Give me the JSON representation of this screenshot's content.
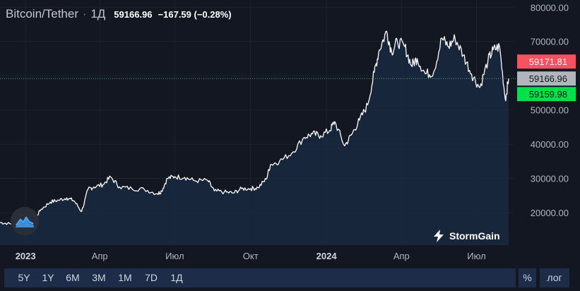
{
  "header": {
    "symbol": "Bitcoin/Tether",
    "separator": "·",
    "interval": "1Д",
    "last_price": "59166.96",
    "change": "−167.59 (−0.28%)"
  },
  "branding": {
    "name": "StormGain"
  },
  "toolbar": {
    "timeframes": [
      "5Y",
      "1Y",
      "6M",
      "3M",
      "1M",
      "7D",
      "1Д"
    ],
    "percent_label": "%",
    "log_label": "лог"
  },
  "colors": {
    "background": "#131722",
    "line": "#ffffff",
    "area": "#1a2940",
    "ask_tag": "#f7525f",
    "last_tag": "#b2b5be",
    "bid_tag": "#00e04a",
    "last_price_line": "#4caf75",
    "toolbar_bg": "#1d2c48"
  },
  "chart_data": {
    "type": "line",
    "title": "",
    "xlabel": "",
    "ylabel": "",
    "y_ticks": [
      "80000.00",
      "70000.00",
      "60000.00",
      "50000.00",
      "40000.00",
      "30000.00",
      "20000.00"
    ],
    "y_tick_values": [
      80000,
      70000,
      60000,
      50000,
      40000,
      30000,
      20000
    ],
    "ylim": [
      10500,
      81500
    ],
    "x_range": [
      "2022-12-01",
      "2024-08-09"
    ],
    "x_ticks": [
      {
        "label": "2023",
        "date": "2023-01-01",
        "bold": true
      },
      {
        "label": "Апр",
        "date": "2023-04-01",
        "bold": false
      },
      {
        "label": "Июл",
        "date": "2023-07-01",
        "bold": false
      },
      {
        "label": "Окт",
        "date": "2023-10-01",
        "bold": false
      },
      {
        "label": "2024",
        "date": "2024-01-01",
        "bold": true
      },
      {
        "label": "Апр",
        "date": "2024-04-01",
        "bold": false
      },
      {
        "label": "Июл",
        "date": "2024-07-01",
        "bold": false
      }
    ],
    "price_tags": {
      "ask": "59171.81",
      "last": "59166.96",
      "bid": "59159.98"
    },
    "last_price_value": 59166.96,
    "series": [
      {
        "x": [
          "2022-12-01",
          "2022-12-10",
          "2022-12-20",
          "2023-01-01",
          "2023-01-10",
          "2023-01-20",
          "2023-01-31",
          "2023-02-10",
          "2023-02-20",
          "2023-03-01",
          "2023-03-10",
          "2023-03-18",
          "2023-03-25",
          "2023-04-05",
          "2023-04-14",
          "2023-04-25",
          "2023-05-10",
          "2023-05-25",
          "2023-06-10",
          "2023-06-15",
          "2023-06-22",
          "2023-07-01",
          "2023-07-13",
          "2023-07-25",
          "2023-08-10",
          "2023-08-18",
          "2023-08-30",
          "2023-09-10",
          "2023-09-20",
          "2023-10-01",
          "2023-10-10",
          "2023-10-20",
          "2023-10-25",
          "2023-11-05",
          "2023-11-20",
          "2023-12-05",
          "2023-12-15",
          "2023-12-25",
          "2024-01-05",
          "2024-01-11",
          "2024-01-23",
          "2024-02-01",
          "2024-02-10",
          "2024-02-20",
          "2024-02-28",
          "2024-03-05",
          "2024-03-14",
          "2024-03-20",
          "2024-03-27",
          "2024-04-05",
          "2024-04-13",
          "2024-04-20",
          "2024-04-30",
          "2024-05-10",
          "2024-05-20",
          "2024-05-28",
          "2024-06-05",
          "2024-06-15",
          "2024-06-25",
          "2024-07-05",
          "2024-07-15",
          "2024-07-21",
          "2024-07-29",
          "2024-08-05",
          "2024-08-09"
        ],
        "y": [
          17100,
          16800,
          16700,
          16600,
          17400,
          21000,
          23100,
          23600,
          24300,
          23400,
          20300,
          26900,
          27500,
          28200,
          30400,
          27500,
          27000,
          26800,
          25500,
          26300,
          30000,
          30500,
          30300,
          29300,
          29400,
          26300,
          26000,
          25700,
          27000,
          27000,
          27300,
          29800,
          34000,
          35000,
          37400,
          42000,
          43000,
          42500,
          44000,
          46600,
          39500,
          43000,
          47000,
          51500,
          61000,
          67500,
          73000,
          67000,
          70000,
          68500,
          63000,
          65000,
          60500,
          61000,
          71000,
          68500,
          71000,
          66000,
          60500,
          56500,
          64500,
          67500,
          68500,
          53000,
          59167
        ]
      }
    ]
  }
}
